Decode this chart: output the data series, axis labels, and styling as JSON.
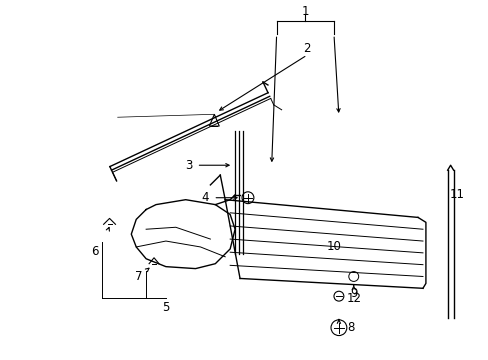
{
  "background_color": "#ffffff",
  "line_color": "#000000",
  "figsize": [
    4.89,
    3.6
  ],
  "dpi": 100,
  "label_fs": 8.5
}
